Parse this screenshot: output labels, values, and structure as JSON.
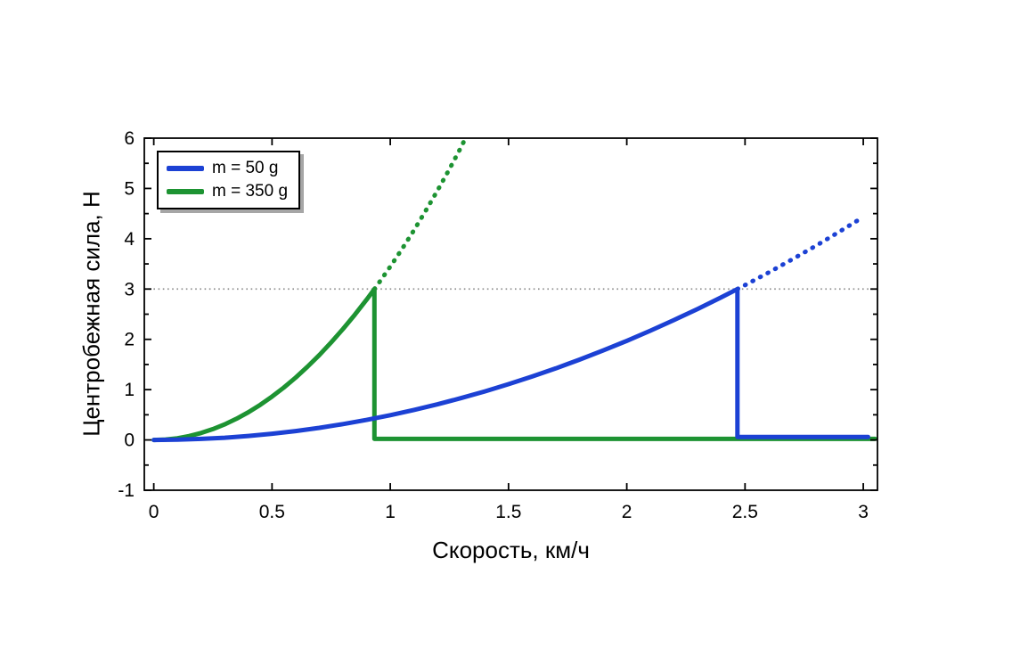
{
  "figure": {
    "background": "#ffffff"
  },
  "chart_data": {
    "type": "line",
    "title": "",
    "xlabel": "Скорость, км/ч",
    "ylabel": "Центробежная сила, Н",
    "xlim": [
      -0.04,
      3.06
    ],
    "ylim": [
      -1,
      6
    ],
    "x_ticks": [
      0,
      0.5,
      1,
      1.5,
      2,
      2.5,
      3
    ],
    "x_tick_labels": [
      "0",
      "0.5",
      "1",
      "1.5",
      "2",
      "2.5",
      "3"
    ],
    "y_ticks": [
      -1,
      0,
      1,
      2,
      3,
      4,
      5,
      6
    ],
    "y_tick_labels": [
      "-1",
      "0",
      "1",
      "2",
      "3",
      "4",
      "5",
      "6"
    ],
    "y_minor_ticks": [
      -0.5,
      0.5,
      1.5,
      2.5,
      3.5,
      4.5,
      5.5
    ],
    "grid": false,
    "box": true,
    "legend_position": "top-left",
    "axis_color": "#000000",
    "threshold_line": {
      "y": 3,
      "color": "#8f8f8f",
      "style": "dotted"
    },
    "legend": [
      {
        "label": "m = 50 g",
        "color": "#1c41d4"
      },
      {
        "label": "m = 350 g",
        "color": "#1d9332"
      }
    ],
    "series": [
      {
        "name": "m = 350 g (solid: rise to 3 N, drop, flat)",
        "color": "#1d9332",
        "style": "solid",
        "width": 5,
        "points": [
          [
            0,
            0
          ],
          [
            0.05,
            0.009
          ],
          [
            0.1,
            0.034
          ],
          [
            0.15,
            0.078
          ],
          [
            0.2,
            0.138
          ],
          [
            0.25,
            0.215
          ],
          [
            0.3,
            0.31
          ],
          [
            0.35,
            0.422
          ],
          [
            0.4,
            0.551
          ],
          [
            0.45,
            0.698
          ],
          [
            0.5,
            0.862
          ],
          [
            0.55,
            1.042
          ],
          [
            0.6,
            1.24
          ],
          [
            0.65,
            1.456
          ],
          [
            0.7,
            1.689
          ],
          [
            0.75,
            1.938
          ],
          [
            0.8,
            2.205
          ],
          [
            0.85,
            2.49
          ],
          [
            0.9,
            2.791
          ],
          [
            0.933,
            3.0
          ],
          [
            0.933,
            0.02
          ],
          [
            3.05,
            0.02
          ]
        ]
      },
      {
        "name": "m = 350 g (dotted extrapolation)",
        "color": "#1d9332",
        "style": "dotted",
        "width": 5,
        "points": [
          [
            0.933,
            3.0
          ],
          [
            0.95,
            3.11
          ],
          [
            1.0,
            3.446
          ],
          [
            1.05,
            3.799
          ],
          [
            1.1,
            4.17
          ],
          [
            1.15,
            4.558
          ],
          [
            1.2,
            4.962
          ],
          [
            1.25,
            5.385
          ],
          [
            1.3,
            5.824
          ],
          [
            1.318,
            6.0
          ]
        ]
      },
      {
        "name": "m = 50 g (solid: rise to 3 N, drop, flat)",
        "color": "#1c41d4",
        "style": "solid",
        "width": 5,
        "points": [
          [
            0,
            0
          ],
          [
            0.1,
            0.005
          ],
          [
            0.2,
            0.02
          ],
          [
            0.3,
            0.044
          ],
          [
            0.4,
            0.079
          ],
          [
            0.5,
            0.123
          ],
          [
            0.6,
            0.177
          ],
          [
            0.7,
            0.241
          ],
          [
            0.8,
            0.315
          ],
          [
            0.9,
            0.399
          ],
          [
            1.0,
            0.493
          ],
          [
            1.1,
            0.596
          ],
          [
            1.2,
            0.709
          ],
          [
            1.3,
            0.832
          ],
          [
            1.4,
            0.965
          ],
          [
            1.5,
            1.108
          ],
          [
            1.6,
            1.261
          ],
          [
            1.7,
            1.423
          ],
          [
            1.8,
            1.596
          ],
          [
            1.9,
            1.778
          ],
          [
            2.0,
            1.97
          ],
          [
            2.1,
            2.172
          ],
          [
            2.2,
            2.384
          ],
          [
            2.3,
            2.605
          ],
          [
            2.4,
            2.837
          ],
          [
            2.468,
            3.0
          ],
          [
            2.468,
            0.06
          ],
          [
            3.02,
            0.06
          ]
        ]
      },
      {
        "name": "m = 50 g (dotted extrapolation)",
        "color": "#1c41d4",
        "style": "dotted",
        "width": 5,
        "points": [
          [
            2.468,
            3.0
          ],
          [
            2.5,
            3.078
          ],
          [
            2.6,
            3.329
          ],
          [
            2.7,
            3.591
          ],
          [
            2.8,
            3.861
          ],
          [
            2.9,
            4.142
          ],
          [
            2.99,
            4.403
          ]
        ]
      }
    ]
  }
}
